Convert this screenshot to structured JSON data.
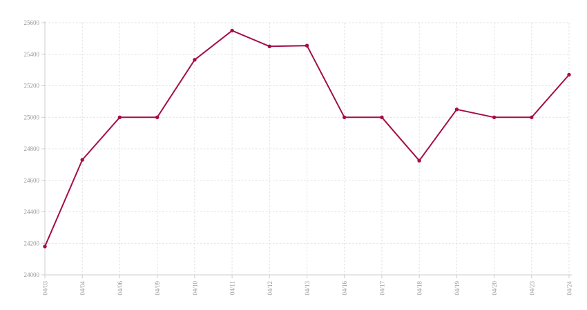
{
  "chart_data": {
    "type": "line",
    "title": "",
    "xlabel": "",
    "ylabel": "",
    "categories": [
      "04/03",
      "04/04",
      "04/06",
      "04/09",
      "04/10",
      "04/11",
      "04/12",
      "04/13",
      "04/16",
      "04/17",
      "04/18",
      "04/19",
      "04/20",
      "04/23",
      "04/24"
    ],
    "series": [
      {
        "name": "value",
        "values": [
          24180,
          24730,
          25000,
          25000,
          25365,
          25550,
          25450,
          25455,
          25000,
          25000,
          24725,
          25050,
          25000,
          25000,
          25270
        ]
      }
    ],
    "ylim": [
      24000,
      25600
    ],
    "ytick_step": 200,
    "yticks": [
      24000,
      24200,
      24400,
      24600,
      24800,
      25000,
      25200,
      25400,
      25600
    ],
    "grid": true,
    "legend_position": "none",
    "x_label_rotation": -90,
    "colors": {
      "line": "#a50d48",
      "marker": "#a50d48",
      "grid": "#e0e0e0",
      "axis": "#cccccc",
      "label": "#999999",
      "background": "#ffffff"
    }
  }
}
